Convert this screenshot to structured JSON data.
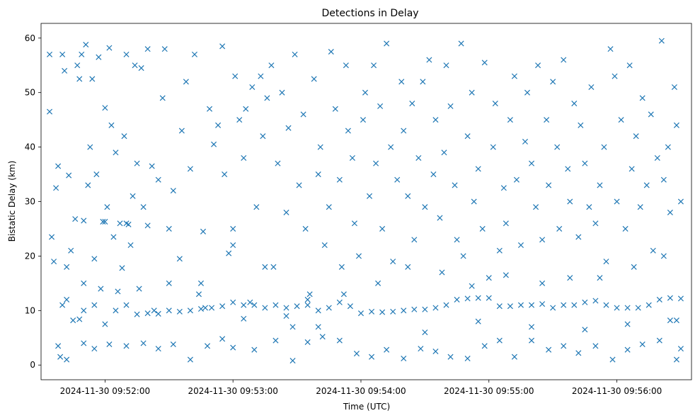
{
  "chart_data": {
    "type": "scatter",
    "title": "Detections in Delay",
    "xlabel": "Time (UTC)",
    "ylabel": "Bistatic Delay (km)",
    "marker": "x",
    "color": "#1f77b4",
    "xlim_seconds": [
      -30,
      275
    ],
    "ylim": [
      -2.7,
      62.7
    ],
    "x_tick_labels": [
      "2024-11-30 09:52:00",
      "2024-11-30 09:53:00",
      "2024-11-30 09:54:00",
      "2024-11-30 09:55:00",
      "2024-11-30 09:56:00"
    ],
    "x_tick_seconds": [
      0,
      60,
      120,
      180,
      240
    ],
    "y_ticks": [
      0,
      10,
      20,
      30,
      40,
      50,
      60
    ],
    "x_unit": "seconds after 2024-11-30 09:52:00",
    "sample_points": [
      [
        -26,
        57
      ],
      [
        -26,
        46.5
      ],
      [
        -25,
        23.5
      ],
      [
        -24,
        19
      ],
      [
        -23,
        32.5
      ],
      [
        -22,
        36.5
      ],
      [
        -21,
        1.5
      ],
      [
        -20,
        57
      ],
      [
        -19,
        54
      ],
      [
        -18,
        18
      ],
      [
        -17,
        34.8
      ],
      [
        -16,
        21
      ],
      [
        -14,
        26.8
      ],
      [
        -13,
        55
      ],
      [
        -12,
        52.5
      ],
      [
        -11,
        57
      ],
      [
        -10,
        15
      ],
      [
        -9,
        58.8
      ],
      [
        -8,
        33
      ],
      [
        -7,
        40
      ],
      [
        -6,
        52.5
      ],
      [
        -5,
        19.5
      ],
      [
        -4,
        35
      ],
      [
        -3,
        56.5
      ],
      [
        -2,
        14
      ],
      [
        -1,
        26.3
      ],
      [
        0,
        47.2
      ],
      [
        1,
        29
      ],
      [
        2,
        58.2
      ],
      [
        3,
        44
      ],
      [
        4,
        23.5
      ],
      [
        5,
        39
      ],
      [
        6,
        13.5
      ],
      [
        7,
        26
      ],
      [
        8,
        17.8
      ],
      [
        9,
        42
      ],
      [
        10,
        57
      ],
      [
        11,
        25.8
      ],
      [
        12,
        22
      ],
      [
        13,
        31
      ],
      [
        14,
        55
      ],
      [
        15,
        37
      ],
      [
        16,
        14
      ],
      [
        17,
        54.5
      ],
      [
        18,
        29
      ],
      [
        20,
        58
      ],
      [
        22,
        36.5
      ],
      [
        23,
        10
      ],
      [
        25,
        34
      ],
      [
        27,
        49
      ],
      [
        28,
        58
      ],
      [
        30,
        15
      ],
      [
        32,
        32
      ],
      [
        35,
        19.5
      ],
      [
        36,
        43
      ],
      [
        38,
        52
      ],
      [
        40,
        36
      ],
      [
        42,
        57
      ],
      [
        44,
        13
      ],
      [
        46,
        24.5
      ],
      [
        47,
        10.5
      ],
      [
        49,
        47
      ],
      [
        51,
        40.5
      ],
      [
        53,
        44
      ],
      [
        55,
        58.5
      ],
      [
        56,
        35
      ],
      [
        58,
        20.5
      ],
      [
        60,
        25
      ],
      [
        61,
        53
      ],
      [
        63,
        45
      ],
      [
        65,
        38
      ],
      [
        66,
        47
      ],
      [
        68,
        11.5
      ],
      [
        69,
        51
      ],
      [
        71,
        29
      ],
      [
        73,
        53
      ],
      [
        74,
        42
      ],
      [
        76,
        49
      ],
      [
        78,
        55
      ],
      [
        79,
        18
      ],
      [
        81,
        37
      ],
      [
        83,
        50
      ],
      [
        85,
        28
      ],
      [
        86,
        43.5
      ],
      [
        88,
        7
      ],
      [
        89,
        57
      ],
      [
        91,
        33
      ],
      [
        93,
        46
      ],
      [
        94,
        25
      ],
      [
        96,
        13
      ],
      [
        98,
        52.5
      ],
      [
        100,
        35
      ],
      [
        101,
        40
      ],
      [
        103,
        22
      ],
      [
        105,
        29
      ],
      [
        106,
        57.5
      ],
      [
        108,
        47
      ],
      [
        110,
        34
      ],
      [
        111,
        18
      ],
      [
        113,
        55
      ],
      [
        114,
        43
      ],
      [
        116,
        38
      ],
      [
        117,
        26
      ],
      [
        119,
        20
      ],
      [
        121,
        45
      ],
      [
        122,
        50
      ],
      [
        124,
        31
      ],
      [
        126,
        55
      ],
      [
        127,
        37
      ],
      [
        129,
        47.5
      ],
      [
        130,
        25
      ],
      [
        132,
        59
      ],
      [
        134,
        40
      ],
      [
        135,
        19
      ],
      [
        137,
        34
      ],
      [
        139,
        52
      ],
      [
        140,
        43
      ],
      [
        142,
        31
      ],
      [
        144,
        48
      ],
      [
        145,
        23
      ],
      [
        147,
        38
      ],
      [
        149,
        52
      ],
      [
        150,
        29
      ],
      [
        152,
        56
      ],
      [
        154,
        35
      ],
      [
        155,
        45
      ],
      [
        157,
        27
      ],
      [
        159,
        39
      ],
      [
        160,
        55
      ],
      [
        162,
        47.5
      ],
      [
        164,
        33
      ],
      [
        165,
        23
      ],
      [
        167,
        59
      ],
      [
        168,
        20
      ],
      [
        170,
        42
      ],
      [
        172,
        50
      ],
      [
        173,
        30
      ],
      [
        175,
        36
      ],
      [
        177,
        25
      ],
      [
        178,
        55.5
      ],
      [
        180,
        16
      ],
      [
        182,
        40
      ],
      [
        183,
        48
      ],
      [
        185,
        21
      ],
      [
        187,
        32.5
      ],
      [
        188,
        26
      ],
      [
        190,
        45
      ],
      [
        192,
        53
      ],
      [
        193,
        34
      ],
      [
        195,
        22
      ],
      [
        197,
        41
      ],
      [
        198,
        50
      ],
      [
        200,
        37
      ],
      [
        202,
        29
      ],
      [
        203,
        55
      ],
      [
        205,
        23
      ],
      [
        207,
        45
      ],
      [
        208,
        33
      ],
      [
        210,
        52
      ],
      [
        212,
        40
      ],
      [
        213,
        25
      ],
      [
        215,
        56
      ],
      [
        217,
        36
      ],
      [
        218,
        30
      ],
      [
        220,
        48
      ],
      [
        222,
        23.5
      ],
      [
        223,
        44
      ],
      [
        225,
        37
      ],
      [
        227,
        29
      ],
      [
        228,
        51
      ],
      [
        230,
        26
      ],
      [
        232,
        33
      ],
      [
        234,
        40
      ],
      [
        235,
        19
      ],
      [
        237,
        58
      ],
      [
        239,
        53
      ],
      [
        240,
        30
      ],
      [
        242,
        45
      ],
      [
        244,
        25
      ],
      [
        246,
        55
      ],
      [
        247,
        36
      ],
      [
        249,
        42
      ],
      [
        251,
        29
      ],
      [
        252,
        49
      ],
      [
        254,
        33
      ],
      [
        256,
        46
      ],
      [
        257,
        21
      ],
      [
        259,
        38
      ],
      [
        261,
        59.5
      ],
      [
        262,
        34
      ],
      [
        264,
        40
      ],
      [
        265,
        28
      ],
      [
        267,
        51
      ],
      [
        268,
        44
      ],
      [
        270,
        30
      ],
      [
        -20,
        11
      ],
      [
        -18,
        12
      ],
      [
        -15,
        8.2
      ],
      [
        -12,
        8.4
      ],
      [
        -10,
        10
      ],
      [
        -5,
        11
      ],
      [
        0,
        7.5
      ],
      [
        5,
        10
      ],
      [
        10,
        11
      ],
      [
        15,
        9.3
      ],
      [
        20,
        9.5
      ],
      [
        25,
        9.4
      ],
      [
        30,
        10
      ],
      [
        35,
        9.8
      ],
      [
        40,
        10
      ],
      [
        45,
        10.3
      ],
      [
        50,
        10.5
      ],
      [
        55,
        10.8
      ],
      [
        60,
        11.5
      ],
      [
        65,
        11
      ],
      [
        70,
        11
      ],
      [
        75,
        10.5
      ],
      [
        80,
        11
      ],
      [
        85,
        10.5
      ],
      [
        90,
        10.8
      ],
      [
        95,
        11
      ],
      [
        100,
        10
      ],
      [
        105,
        10.5
      ],
      [
        110,
        11.5
      ],
      [
        115,
        10.8
      ],
      [
        120,
        9.5
      ],
      [
        125,
        9.8
      ],
      [
        130,
        9.7
      ],
      [
        135,
        9.8
      ],
      [
        140,
        10
      ],
      [
        145,
        10.2
      ],
      [
        150,
        10.2
      ],
      [
        155,
        10.5
      ],
      [
        160,
        11
      ],
      [
        165,
        12
      ],
      [
        170,
        12.2
      ],
      [
        175,
        12.3
      ],
      [
        180,
        12.3
      ],
      [
        185,
        10.8
      ],
      [
        190,
        10.8
      ],
      [
        195,
        11
      ],
      [
        200,
        11
      ],
      [
        205,
        11.2
      ],
      [
        210,
        10.5
      ],
      [
        215,
        11
      ],
      [
        220,
        11
      ],
      [
        225,
        11.5
      ],
      [
        230,
        11.8
      ],
      [
        235,
        11
      ],
      [
        240,
        10.5
      ],
      [
        245,
        10.5
      ],
      [
        250,
        10.5
      ],
      [
        255,
        11
      ],
      [
        260,
        12
      ],
      [
        265,
        12.3
      ],
      [
        270,
        12.2
      ],
      [
        -10,
        26.5
      ],
      [
        0,
        26.3
      ],
      [
        10,
        26
      ],
      [
        20,
        25.6
      ],
      [
        30,
        25
      ],
      [
        -22,
        3.5
      ],
      [
        -18,
        1
      ],
      [
        -10,
        4
      ],
      [
        -5,
        3
      ],
      [
        2,
        3.8
      ],
      [
        10,
        3.5
      ],
      [
        18,
        4
      ],
      [
        25,
        3
      ],
      [
        32,
        3.8
      ],
      [
        40,
        1
      ],
      [
        48,
        3.5
      ],
      [
        55,
        4.8
      ],
      [
        60,
        3.2
      ],
      [
        70,
        2.8
      ],
      [
        80,
        4.5
      ],
      [
        88,
        0.8
      ],
      [
        95,
        4.2
      ],
      [
        102,
        5.2
      ],
      [
        110,
        4.5
      ],
      [
        118,
        2.1
      ],
      [
        125,
        1.5
      ],
      [
        132,
        2.8
      ],
      [
        140,
        1.2
      ],
      [
        148,
        3
      ],
      [
        155,
        2.5
      ],
      [
        162,
        1.5
      ],
      [
        170,
        1.2
      ],
      [
        178,
        3.5
      ],
      [
        185,
        4.5
      ],
      [
        192,
        1.5
      ],
      [
        200,
        4.5
      ],
      [
        208,
        2.8
      ],
      [
        215,
        3.5
      ],
      [
        222,
        2.2
      ],
      [
        230,
        3.5
      ],
      [
        238,
        1
      ],
      [
        245,
        2.8
      ],
      [
        252,
        3.8
      ],
      [
        260,
        4.5
      ],
      [
        268,
        1
      ],
      [
        270,
        3
      ],
      [
        45,
        15
      ],
      [
        60,
        22
      ],
      [
        75,
        18
      ],
      [
        95,
        12
      ],
      [
        112,
        13
      ],
      [
        128,
        15
      ],
      [
        142,
        18
      ],
      [
        158,
        17
      ],
      [
        172,
        14.5
      ],
      [
        188,
        16.5
      ],
      [
        205,
        15
      ],
      [
        218,
        16
      ],
      [
        232,
        16
      ],
      [
        248,
        18
      ],
      [
        262,
        20
      ],
      [
        265,
        8.2
      ],
      [
        268,
        8.2
      ],
      [
        100,
        7
      ],
      [
        85,
        9
      ],
      [
        65,
        8.5
      ],
      [
        150,
        6
      ],
      [
        175,
        8
      ],
      [
        200,
        7
      ],
      [
        225,
        6.5
      ],
      [
        245,
        7.5
      ]
    ]
  }
}
